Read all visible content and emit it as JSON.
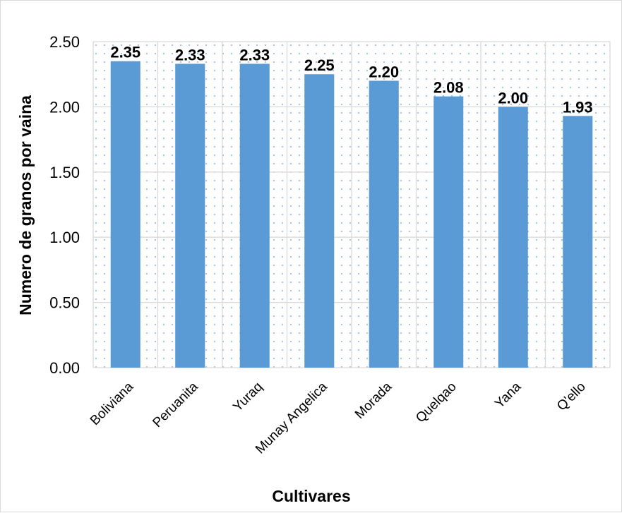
{
  "chart_data": {
    "type": "bar",
    "title": "",
    "xlabel": "Cultivares",
    "ylabel": "Numero de granos por vaina",
    "categories": [
      "Boliviana",
      "Peruanita",
      "Yuraq",
      "Munay Angelica",
      "Morada",
      "Quelqao",
      "Yana",
      "Q'ello"
    ],
    "values": [
      2.35,
      2.33,
      2.33,
      2.25,
      2.2,
      2.08,
      2.0,
      1.93
    ],
    "value_labels": [
      "2.35",
      "2.33",
      "2.33",
      "2.25",
      "2.20",
      "2.08",
      "2.00",
      "1.93"
    ],
    "yticks": [
      "0.00",
      "0.50",
      "1.00",
      "1.50",
      "2.00",
      "2.50"
    ],
    "ylim": [
      0,
      2.5
    ],
    "grid": true,
    "legend": "none",
    "colors": {
      "bar": "#5b9bd5",
      "grid": "#d9d9d9",
      "dots": "#5b9bd5"
    }
  }
}
